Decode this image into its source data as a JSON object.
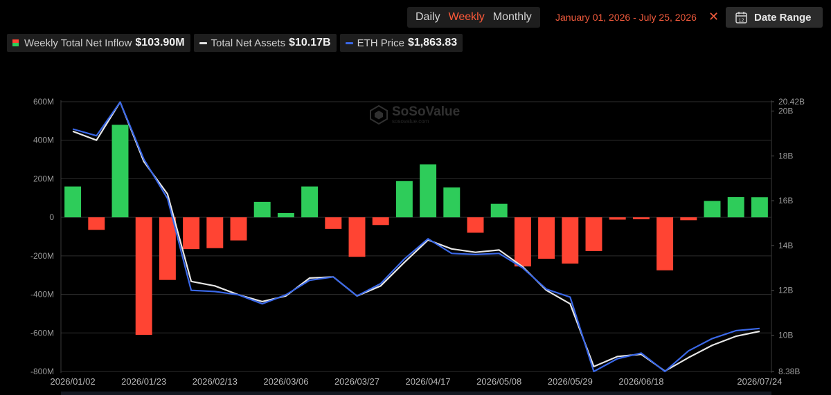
{
  "toolbar": {
    "periods": [
      "Daily",
      "Weekly",
      "Monthly"
    ],
    "active_period": "Weekly",
    "date_range_text": "January 01, 2026 - July 25, 2026",
    "clear_icon": "close-icon",
    "date_range_button": "Date Range",
    "calendar_icon_day": "12",
    "date_range_icon": "calendar-icon"
  },
  "legend": [
    {
      "label": "Weekly Total Net Inflow",
      "value": "$103.90M"
    },
    {
      "label": "Total Net Assets",
      "value": "$10.17B"
    },
    {
      "label": "ETH Price",
      "value": "$1,863.83"
    }
  ],
  "watermark": {
    "name": "SoSoValue",
    "url": "sosovalue.com"
  },
  "colors": {
    "positive": "#2ecc5a",
    "negative": "#ff4433",
    "assets_line": "#e6e6e6",
    "price_line": "#3a68e8",
    "accent": "#ff5a3a"
  },
  "chart_data": {
    "type": "bar",
    "x": [
      "2026/01/02",
      "2026/01/09",
      "2026/01/16",
      "2026/01/23",
      "2026/01/30",
      "2026/02/06",
      "2026/02/13",
      "2026/02/20",
      "2026/02/27",
      "2026/03/06",
      "2026/03/13",
      "2026/03/20",
      "2026/03/27",
      "2026/04/03",
      "2026/04/10",
      "2026/04/17",
      "2026/04/24",
      "2026/05/01",
      "2026/05/08",
      "2026/05/15",
      "2026/05/22",
      "2026/05/29",
      "2026/06/05",
      "2026/06/12",
      "2026/06/18",
      "2026/06/26",
      "2026/07/03",
      "2026/07/10",
      "2026/07/17",
      "2026/07/24"
    ],
    "x_tick_labels": [
      "2026/01/02",
      "2026/01/23",
      "2026/02/13",
      "2026/03/06",
      "2026/03/27",
      "2026/04/17",
      "2026/05/08",
      "2026/05/29",
      "2026/06/18",
      "2026/07/24"
    ],
    "series": [
      {
        "name": "Weekly Total Net Inflow",
        "type": "bar",
        "axis": "left",
        "values": [
          160,
          -65,
          480,
          -610,
          -325,
          -165,
          -160,
          -120,
          80,
          22,
          160,
          -60,
          -205,
          -40,
          188,
          275,
          155,
          -80,
          70,
          -255,
          -215,
          -240,
          -175,
          -12,
          -10,
          -275,
          -15,
          85,
          105,
          104
        ]
      },
      {
        "name": "Total Net Assets",
        "type": "line",
        "axis": "right",
        "values": [
          19.1,
          18.7,
          20.4,
          17.75,
          16.3,
          12.4,
          12.2,
          11.8,
          11.5,
          11.75,
          12.55,
          12.6,
          11.75,
          12.2,
          13.25,
          14.25,
          13.85,
          13.7,
          13.8,
          13.05,
          12.0,
          11.4,
          8.6,
          9.05,
          9.15,
          8.4,
          9.0,
          9.55,
          9.95,
          10.17
        ]
      },
      {
        "name": "ETH Price",
        "type": "line",
        "axis": "right",
        "values": [
          19.2,
          18.9,
          20.4,
          17.85,
          16.1,
          12.0,
          11.95,
          11.8,
          11.4,
          11.8,
          12.45,
          12.6,
          11.75,
          12.3,
          13.4,
          14.3,
          13.65,
          13.6,
          13.65,
          13.0,
          12.05,
          11.7,
          8.38,
          8.95,
          9.2,
          8.38,
          9.3,
          9.85,
          10.2,
          10.3
        ]
      }
    ],
    "y_left": {
      "ticks": [
        600,
        400,
        200,
        0,
        -200,
        -400,
        -600,
        -800
      ],
      "tick_labels": [
        "600M",
        "400M",
        "200M",
        "0",
        "-200M",
        "-400M",
        "-600M",
        "-800M"
      ],
      "ylim": [
        -800,
        600
      ]
    },
    "y_right": {
      "ticks": [
        20.42,
        20,
        18,
        16,
        14,
        12,
        10,
        8.38
      ],
      "tick_labels": [
        "20.42B",
        "20B",
        "18B",
        "16B",
        "14B",
        "12B",
        "10B",
        "8.38B"
      ],
      "ylim": [
        8.38,
        20.42
      ]
    },
    "grid": true,
    "legend_position": "top-left"
  }
}
